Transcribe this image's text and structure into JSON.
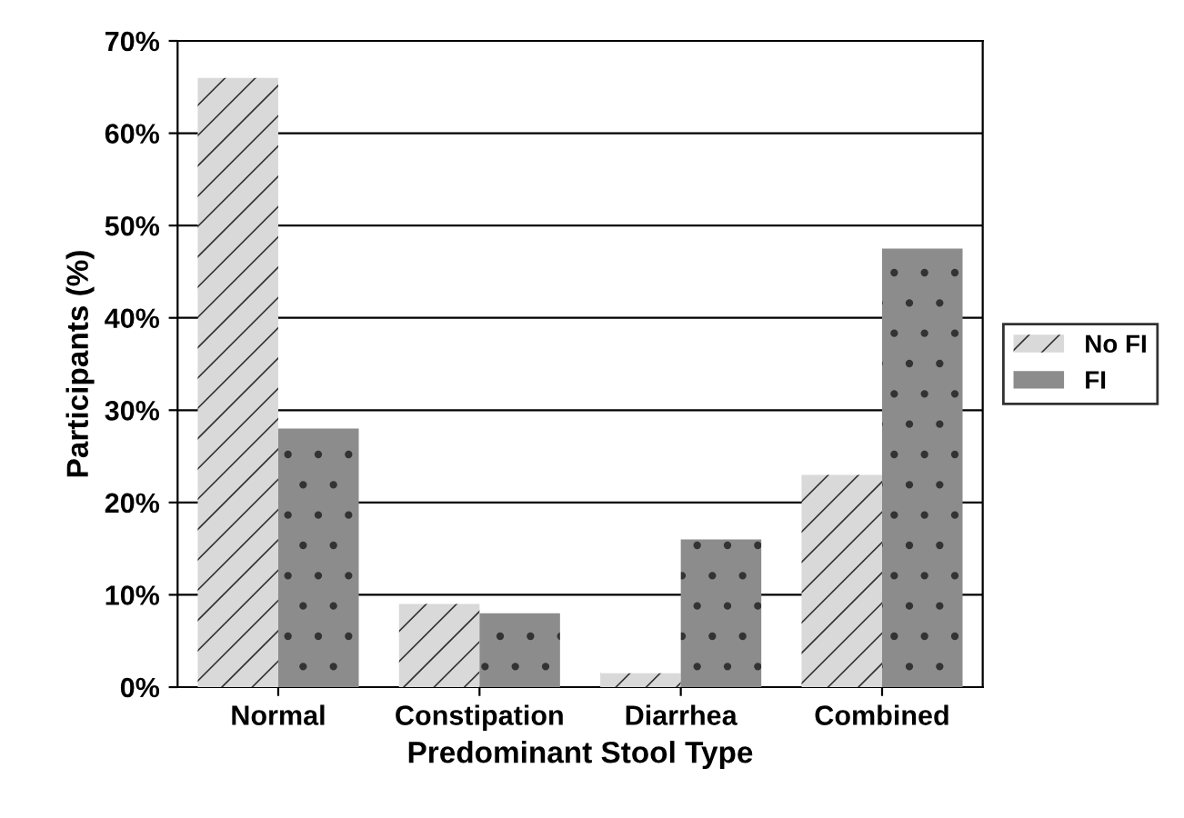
{
  "chart_data": {
    "type": "bar",
    "xlabel": "Predominant Stool Type",
    "ylabel": "Participants (%)",
    "categories": [
      "Normal",
      "Constipation",
      "Diarrhea",
      "Combined"
    ],
    "series": [
      {
        "name": "No FI",
        "color": "#d9d9d9",
        "values": [
          66,
          9,
          1.5,
          23
        ]
      },
      {
        "name": "FI",
        "color": "#8c8c8c",
        "values": [
          28,
          8,
          16,
          47.5
        ]
      }
    ],
    "ylim": [
      0,
      70
    ],
    "yticks": [
      {
        "value": 0,
        "label": "0%"
      },
      {
        "value": 10,
        "label": "10%"
      },
      {
        "value": 20,
        "label": "20%"
      },
      {
        "value": 30,
        "label": "30%"
      },
      {
        "value": 40,
        "label": "40%"
      },
      {
        "value": 50,
        "label": "50%"
      },
      {
        "value": 60,
        "label": "60%"
      },
      {
        "value": 70,
        "label": "70%"
      }
    ],
    "grid": "y",
    "legend": "right"
  }
}
